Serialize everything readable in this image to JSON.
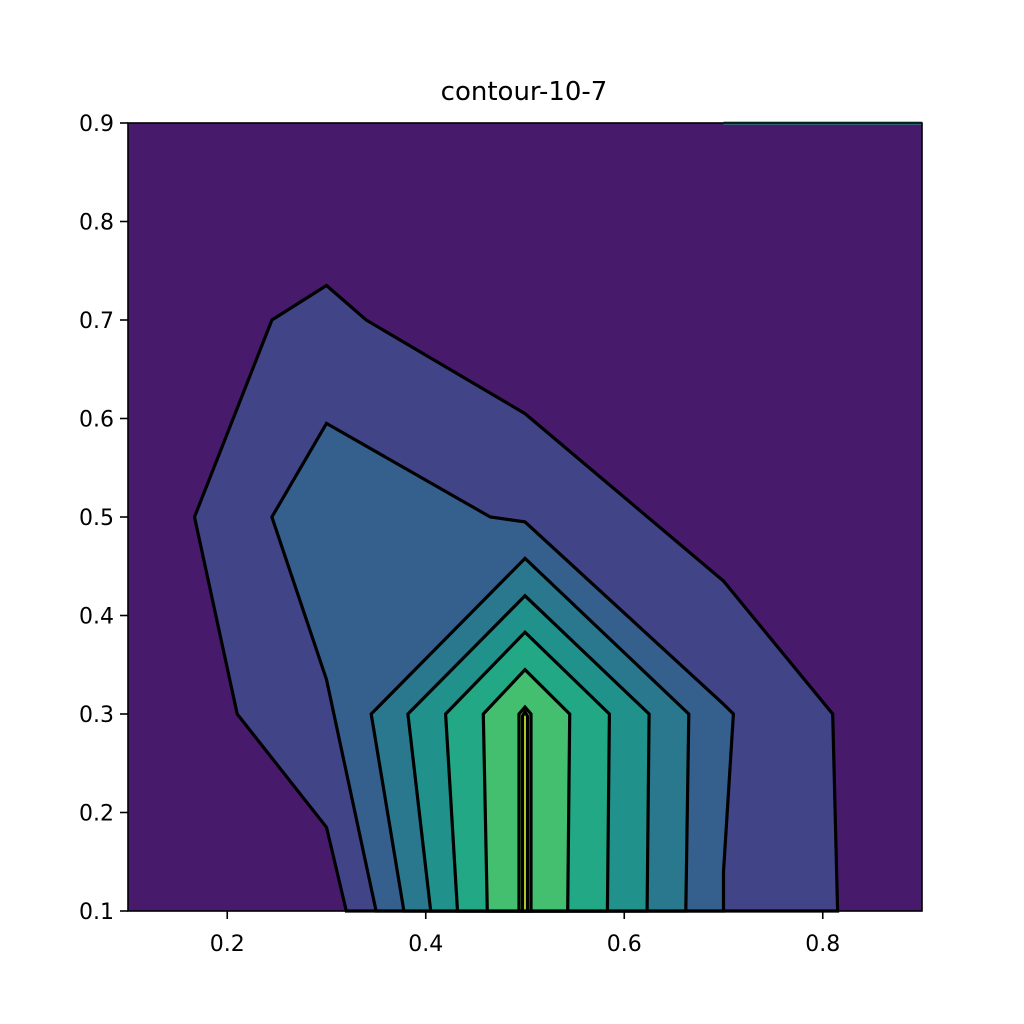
{
  "chart_data": {
    "type": "contour",
    "title": "contour-10-7",
    "xlabel": "",
    "ylabel": "",
    "xlim": [
      0.1,
      0.9
    ],
    "ylim": [
      0.1,
      0.9
    ],
    "x_ticks": [
      0.2,
      0.4,
      0.6,
      0.8
    ],
    "x_tick_labels": [
      "0.2",
      "0.4",
      "0.6",
      "0.8"
    ],
    "y_ticks": [
      0.1,
      0.2,
      0.3,
      0.4,
      0.5,
      0.6,
      0.7,
      0.8,
      0.9
    ],
    "y_tick_labels": [
      "0.1",
      "0.2",
      "0.3",
      "0.4",
      "0.5",
      "0.6",
      "0.7",
      "0.8",
      "0.9"
    ],
    "grid": false,
    "colormap": "viridis",
    "background_color": "#481a6c",
    "edge_color": "#000000",
    "levels": [
      {
        "color": "#414487",
        "polygon": [
          [
            0.32,
            0.1
          ],
          [
            0.3,
            0.185
          ],
          [
            0.21,
            0.3
          ],
          [
            0.167,
            0.5
          ],
          [
            0.245,
            0.7
          ],
          [
            0.3,
            0.735
          ],
          [
            0.34,
            0.7
          ],
          [
            0.5,
            0.605
          ],
          [
            0.7,
            0.435
          ],
          [
            0.81,
            0.3
          ],
          [
            0.815,
            0.1
          ]
        ]
      },
      {
        "color": "#35608d",
        "polygon": [
          [
            0.35,
            0.1
          ],
          [
            0.3,
            0.335
          ],
          [
            0.245,
            0.5
          ],
          [
            0.3,
            0.595
          ],
          [
            0.465,
            0.5
          ],
          [
            0.5,
            0.495
          ],
          [
            0.7,
            0.31
          ],
          [
            0.71,
            0.3
          ],
          [
            0.7,
            0.14
          ],
          [
            0.7,
            0.1
          ]
        ]
      },
      {
        "color": "#2a788e",
        "polygon": [
          [
            0.378,
            0.1
          ],
          [
            0.345,
            0.3
          ],
          [
            0.5,
            0.458
          ],
          [
            0.665,
            0.3
          ],
          [
            0.662,
            0.1
          ]
        ]
      },
      {
        "color": "#21918c",
        "polygon": [
          [
            0.405,
            0.1
          ],
          [
            0.382,
            0.3
          ],
          [
            0.5,
            0.42
          ],
          [
            0.625,
            0.3
          ],
          [
            0.623,
            0.1
          ]
        ]
      },
      {
        "color": "#22a884",
        "polygon": [
          [
            0.432,
            0.1
          ],
          [
            0.42,
            0.3
          ],
          [
            0.5,
            0.383
          ],
          [
            0.585,
            0.3
          ],
          [
            0.583,
            0.1
          ]
        ]
      },
      {
        "color": "#44bf70",
        "polygon": [
          [
            0.462,
            0.1
          ],
          [
            0.458,
            0.3
          ],
          [
            0.5,
            0.345
          ],
          [
            0.545,
            0.3
          ],
          [
            0.543,
            0.1
          ]
        ]
      },
      {
        "color": "#7ad151",
        "polygon": [
          [
            0.494,
            0.1
          ],
          [
            0.494,
            0.3
          ],
          [
            0.5,
            0.307
          ],
          [
            0.506,
            0.3
          ],
          [
            0.506,
            0.1
          ]
        ]
      },
      {
        "color": "#bddf26",
        "polygon": [
          [
            0.4975,
            0.1
          ],
          [
            0.4975,
            0.298
          ],
          [
            0.5,
            0.302
          ],
          [
            0.5025,
            0.298
          ],
          [
            0.5025,
            0.1
          ]
        ]
      }
    ],
    "corner_contour": {
      "color": "#22a884",
      "polyline": [
        [
          0.7,
          0.9
        ],
        [
          0.9,
          0.9
        ]
      ]
    }
  }
}
